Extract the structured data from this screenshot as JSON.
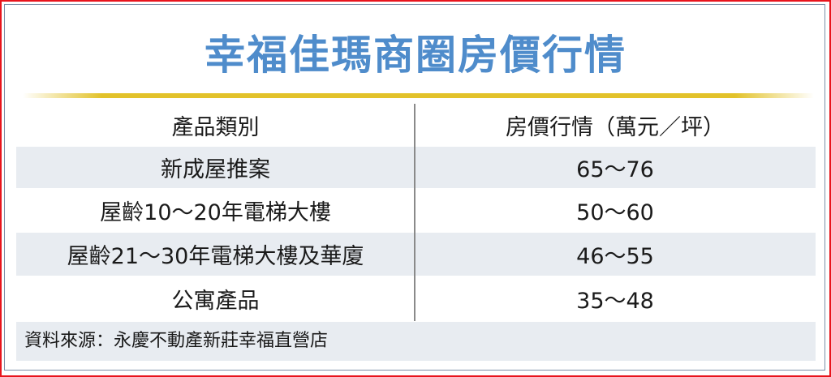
{
  "title": "幸福佳瑪商圈房價行情",
  "table": {
    "headers": [
      "產品類別",
      "房價行情（萬元／坪）"
    ],
    "rows": [
      {
        "category": "新成屋推案",
        "price": "65～76"
      },
      {
        "category": "屋齡10～20年電梯大樓",
        "price": "50～60"
      },
      {
        "category": "屋齡21～30年電梯大樓及華廈",
        "price": "46～55"
      },
      {
        "category": "公寓產品",
        "price": "35～48"
      }
    ]
  },
  "source": "資料來源：永慶不動產新莊幸福直營店",
  "colors": {
    "title": "#4f8ccb",
    "border": "#e8141c",
    "rule": "#e2c22a",
    "row_shade": "#e8ecf1"
  }
}
